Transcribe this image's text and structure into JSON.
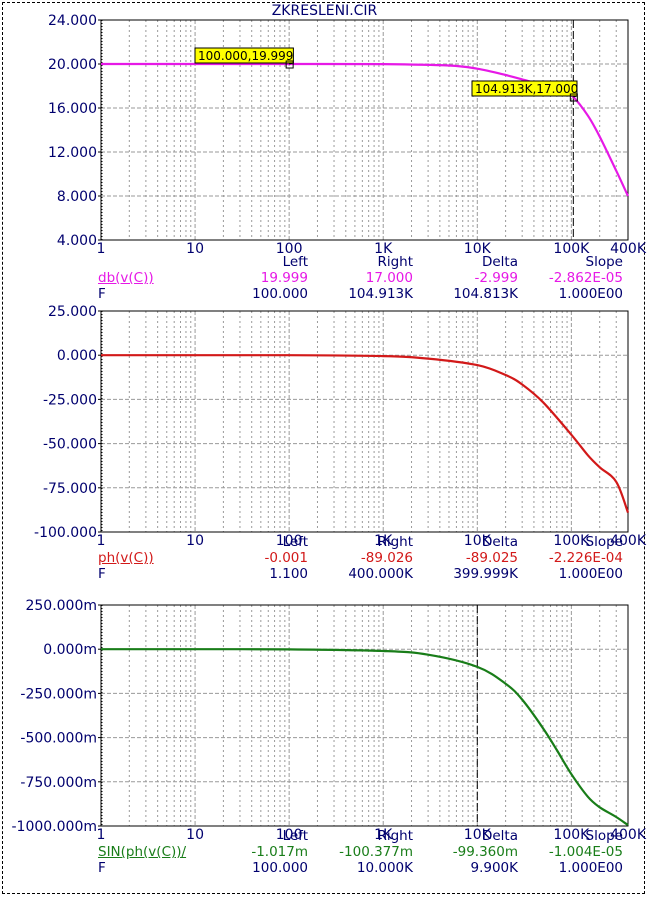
{
  "title": "ZKRESLENI.CIR",
  "colors": {
    "frame": "#00006e",
    "grid": "#9a9a9a",
    "axis_text": "#00006e"
  },
  "chart_data": [
    {
      "type": "line",
      "x_scale": "log",
      "xlim": [
        1,
        400000
      ],
      "x_ticks": [
        1,
        10,
        100,
        1000,
        10000,
        100000,
        400000
      ],
      "x_tick_labels": [
        "1",
        "10",
        "100",
        "1K",
        "10K",
        "100K",
        "400K"
      ],
      "ylim": [
        4,
        24
      ],
      "y_ticks": [
        4,
        8,
        12,
        16,
        20,
        24
      ],
      "y_tick_labels": [
        "4.000",
        "8.000",
        "12.000",
        "16.000",
        "20.000",
        "24.000"
      ],
      "grid": true,
      "series": [
        {
          "name": "db(v(C))",
          "color": "#e619e6",
          "x": [
            1,
            10,
            100,
            1000,
            5000,
            10000,
            20000,
            30000,
            40000,
            50000,
            60000,
            70000,
            80000,
            90000,
            104913,
            150000,
            200000,
            300000,
            400000
          ],
          "y": [
            20.0,
            20.0,
            19.999,
            19.99,
            19.86,
            19.57,
            19.0,
            18.6,
            18.3,
            18.0,
            17.8,
            17.6,
            17.4,
            17.2,
            17.0,
            15.3,
            13.4,
            10.3,
            8.0
          ]
        }
      ],
      "cursor_x": 104913,
      "annotations": [
        "100.000,19.999",
        "104.913K,17.000"
      ],
      "readout": {
        "header": [
          "Left",
          "Right",
          "Delta",
          "Slope"
        ],
        "expr": "db(v(C))",
        "expr_values": [
          "19.999",
          "17.000",
          "-2.999",
          "-2.862E-05"
        ],
        "x_label": "F",
        "x_values": [
          "100.000",
          "104.913K",
          "104.813K",
          "1.000E00"
        ]
      }
    },
    {
      "type": "line",
      "x_scale": "log",
      "xlim": [
        1,
        400000
      ],
      "x_ticks": [
        1,
        10,
        100,
        1000,
        10000,
        100000,
        400000
      ],
      "x_tick_labels": [
        "1",
        "10",
        "100",
        "1K",
        "10K",
        "100K",
        "400K"
      ],
      "ylim": [
        -100,
        25
      ],
      "y_ticks": [
        -100,
        -75,
        -50,
        -25,
        0,
        25
      ],
      "y_tick_labels": [
        "-100.000",
        "-75.000",
        "-50.000",
        "-25.000",
        "0.000",
        "25.000"
      ],
      "grid": true,
      "series": [
        {
          "name": "ph(v(C))",
          "color": "#d21919",
          "x": [
            1,
            10,
            100,
            1000,
            3000,
            10000,
            20000,
            30000,
            50000,
            100000,
            150000,
            200000,
            300000,
            400000
          ],
          "y": [
            0,
            0,
            0,
            -0.5,
            -1.9,
            -5.6,
            -11.2,
            -16.6,
            -26.6,
            -45.0,
            -56.6,
            -63.4,
            -71.6,
            -89.0
          ]
        }
      ],
      "cursor_x": 400000,
      "readout": {
        "header": [
          "Left",
          "Right",
          "Delta",
          "Slope"
        ],
        "expr": "ph(v(C))",
        "expr_values": [
          "-0.001",
          "-89.026",
          "-89.025",
          "-2.226E-04"
        ],
        "x_label": "F",
        "x_values": [
          "1.100",
          "400.000K",
          "399.999K",
          "1.000E00"
        ]
      }
    },
    {
      "type": "line",
      "x_scale": "log",
      "xlim": [
        1,
        400000
      ],
      "x_ticks": [
        1,
        10,
        100,
        1000,
        10000,
        100000,
        400000
      ],
      "x_tick_labels": [
        "1",
        "10",
        "100",
        "1K",
        "10K",
        "100K",
        "400K"
      ],
      "ylim": [
        -1000,
        250
      ],
      "y_ticks": [
        -1000,
        -750,
        -500,
        -250,
        0,
        250
      ],
      "y_tick_labels": [
        "-1000.000m",
        "-750.000m",
        "-500.000m",
        "-250.000m",
        "0.000m",
        "250.000m"
      ],
      "grid": true,
      "series": [
        {
          "name": "SIN(ph(v(C))/",
          "color": "#197d19",
          "x": [
            1,
            10,
            100,
            1000,
            3000,
            10000,
            20000,
            30000,
            50000,
            70000,
            100000,
            150000,
            200000,
            300000,
            400000
          ],
          "y": [
            0,
            0,
            -1,
            -10,
            -31,
            -100,
            -195,
            -285,
            -447,
            -570,
            -707,
            -835,
            -894,
            -949,
            -995
          ]
        }
      ],
      "cursor_x": 10000,
      "readout": {
        "header": [
          "Left",
          "Right",
          "Delta",
          "Slope"
        ],
        "expr": "SIN(ph(v(C))/",
        "expr_values": [
          "-1.017m",
          "-100.377m",
          "-99.360m",
          "-1.004E-05"
        ],
        "x_label": "F",
        "x_values": [
          "100.000",
          "10.000K",
          "9.900K",
          "1.000E00"
        ]
      }
    }
  ]
}
